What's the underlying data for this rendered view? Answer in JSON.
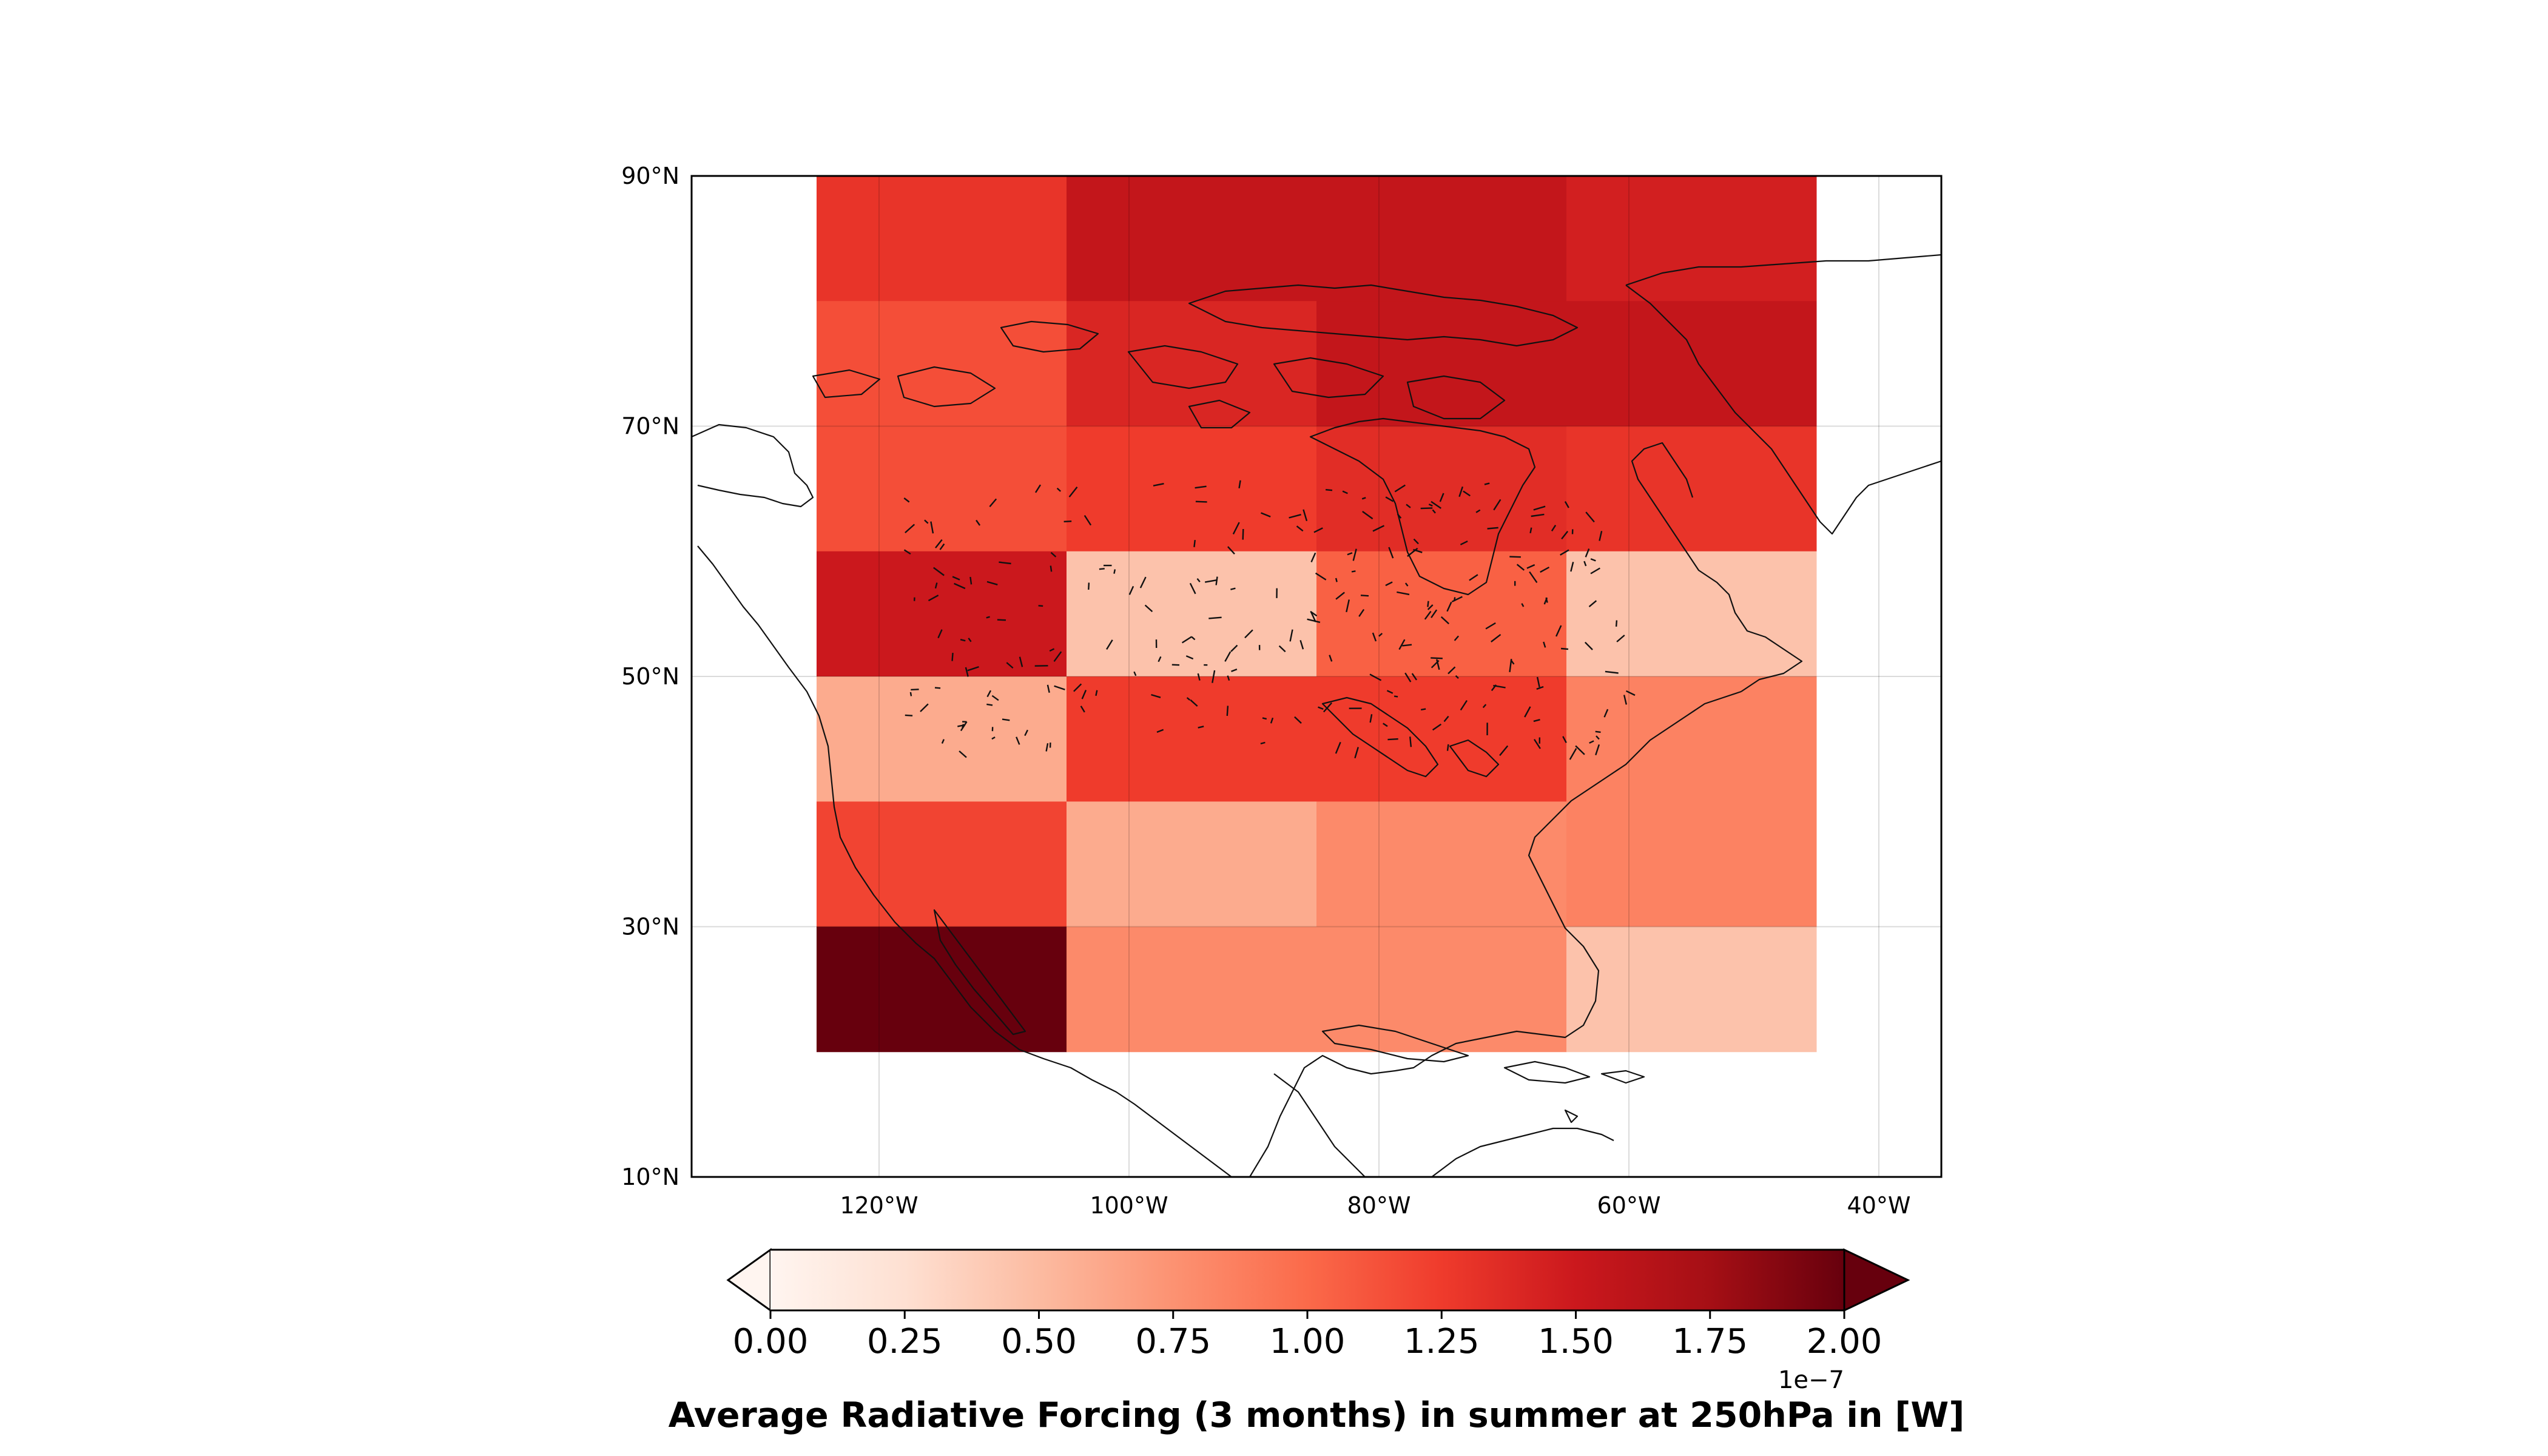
{
  "chart_data": {
    "type": "heatmap",
    "title": "",
    "xlabel": "",
    "ylabel": "",
    "colorbar_label": "Average Radiative Forcing (3 months) in summer at 250hPa in [W]",
    "colorbar_ticks": [
      "0.00",
      "0.25",
      "0.50",
      "0.75",
      "1.00",
      "1.25",
      "1.50",
      "1.75",
      "2.00"
    ],
    "colorbar_multiplier": "1e−7",
    "colorbar_range": [
      0,
      2.0
    ],
    "colormap": [
      "#fff5f0",
      "#fee0d2",
      "#fcbba1",
      "#fc9272",
      "#fb6a4a",
      "#ef3b2c",
      "#cb181d",
      "#a50f15",
      "#67000d"
    ],
    "lon_range": [
      -135,
      -35
    ],
    "lat_range": [
      10,
      90
    ],
    "x_ticks": [
      {
        "lon": -120,
        "label": "120°W"
      },
      {
        "lon": -100,
        "label": "100°W"
      },
      {
        "lon": -80,
        "label": "80°W"
      },
      {
        "lon": -60,
        "label": "60°W"
      },
      {
        "lon": -40,
        "label": "40°W"
      }
    ],
    "y_ticks": [
      {
        "lat": 90,
        "label": "90°N"
      },
      {
        "lat": 70,
        "label": "70°N"
      },
      {
        "lat": 50,
        "label": "50°N"
      },
      {
        "lat": 30,
        "label": "30°N"
      },
      {
        "lat": 10,
        "label": "10°N"
      }
    ],
    "grid": true,
    "cells": [
      {
        "lon": [
          -125,
          -105
        ],
        "lat": [
          80,
          90
        ],
        "value": 1.3
      },
      {
        "lon": [
          -105,
          -65
        ],
        "lat": [
          80,
          90
        ],
        "value": 1.55
      },
      {
        "lon": [
          -65,
          -45
        ],
        "lat": [
          80,
          90
        ],
        "value": 1.45
      },
      {
        "lon": [
          -125,
          -105
        ],
        "lat": [
          70,
          80
        ],
        "value": 1.15
      },
      {
        "lon": [
          -105,
          -85
        ],
        "lat": [
          70,
          80
        ],
        "value": 1.4
      },
      {
        "lon": [
          -85,
          -45
        ],
        "lat": [
          70,
          80
        ],
        "value": 1.55
      },
      {
        "lon": [
          -125,
          -105
        ],
        "lat": [
          60,
          70
        ],
        "value": 1.15
      },
      {
        "lon": [
          -105,
          -85
        ],
        "lat": [
          60,
          70
        ],
        "value": 1.25
      },
      {
        "lon": [
          -85,
          -65
        ],
        "lat": [
          60,
          70
        ],
        "value": 1.35
      },
      {
        "lon": [
          -65,
          -45
        ],
        "lat": [
          60,
          70
        ],
        "value": 1.3
      },
      {
        "lon": [
          -125,
          -105
        ],
        "lat": [
          50,
          60
        ],
        "value": 1.5
      },
      {
        "lon": [
          -105,
          -85
        ],
        "lat": [
          50,
          60
        ],
        "value": 0.45
      },
      {
        "lon": [
          -85,
          -65
        ],
        "lat": [
          50,
          60
        ],
        "value": 1.05
      },
      {
        "lon": [
          -65,
          -45
        ],
        "lat": [
          50,
          60
        ],
        "value": 0.45
      },
      {
        "lon": [
          -125,
          -105
        ],
        "lat": [
          40,
          50
        ],
        "value": 0.6
      },
      {
        "lon": [
          -105,
          -65
        ],
        "lat": [
          40,
          50
        ],
        "value": 1.25
      },
      {
        "lon": [
          -65,
          -45
        ],
        "lat": [
          40,
          50
        ],
        "value": 0.85
      },
      {
        "lon": [
          -125,
          -105
        ],
        "lat": [
          30,
          40
        ],
        "value": 1.2
      },
      {
        "lon": [
          -105,
          -85
        ],
        "lat": [
          30,
          40
        ],
        "value": 0.6
      },
      {
        "lon": [
          -85,
          -65
        ],
        "lat": [
          30,
          40
        ],
        "value": 0.8
      },
      {
        "lon": [
          -65,
          -45
        ],
        "lat": [
          30,
          40
        ],
        "value": 0.85
      },
      {
        "lon": [
          -125,
          -105
        ],
        "lat": [
          20,
          30
        ],
        "value": 2.0
      },
      {
        "lon": [
          -105,
          -65
        ],
        "lat": [
          20,
          30
        ],
        "value": 0.8
      },
      {
        "lon": [
          -65,
          -45
        ],
        "lat": [
          20,
          30
        ],
        "value": 0.45
      }
    ]
  }
}
